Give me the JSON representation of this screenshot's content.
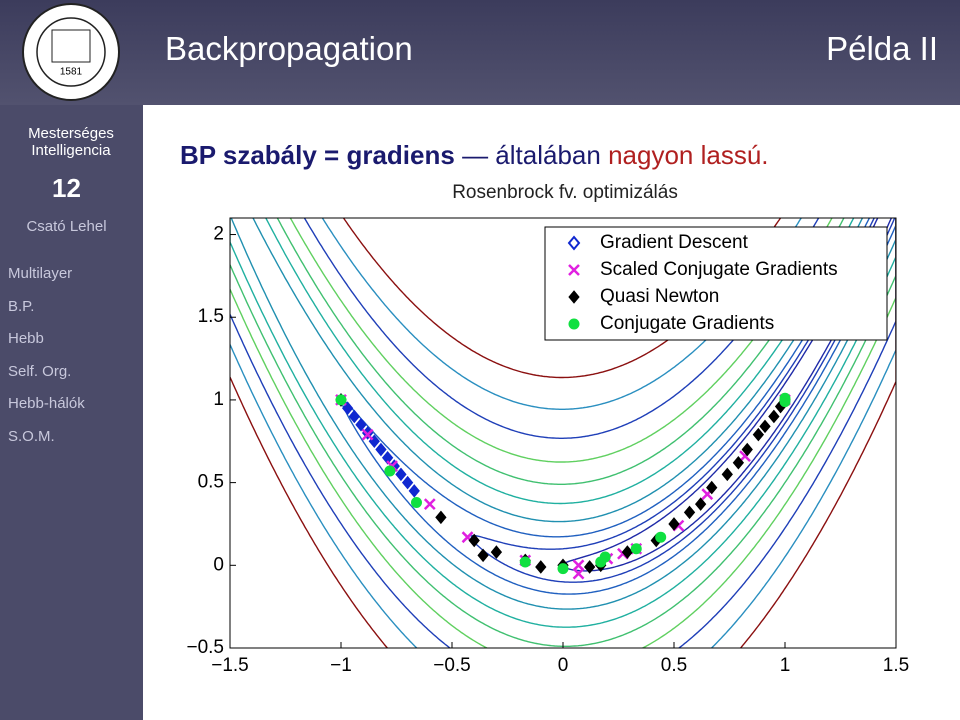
{
  "header": {
    "title": "Backpropagation",
    "right": "Példa II",
    "logo_year": "1581"
  },
  "sidebar": {
    "course": "Mesterséges Intelligencia",
    "number": "12",
    "author": "Csató Lehel",
    "items": [
      "Multilayer",
      "B.P.",
      "Hebb",
      "Self. Org.",
      "Hebb-hálók",
      "S.O.M."
    ]
  },
  "headline": {
    "bold": "BP szabály = gradiens",
    "dash": "—",
    "normal": "általában",
    "red": "nagyon lassú."
  },
  "chart_data": {
    "type": "scatter",
    "title": "Rosenbrock fv. optimizálás",
    "xlim": [
      -1.5,
      1.5
    ],
    "ylim": [
      -0.5,
      2.1
    ],
    "xticks": [
      {
        "value": -1.5,
        "label": "−1.5"
      },
      {
        "value": -1,
        "label": "−1"
      },
      {
        "value": -0.5,
        "label": "−0.5"
      },
      0,
      0.5,
      1,
      1.5
    ],
    "yticks": [
      {
        "value": -0.5,
        "label": "−0.5"
      },
      0,
      0.5,
      1,
      1.5,
      2
    ],
    "contours": {
      "levels": [
        1,
        2,
        4,
        8,
        15,
        25,
        40,
        60,
        90,
        130
      ],
      "colors": [
        "#1f2aa8",
        "#1f3fb8",
        "#2060c0",
        "#2090b0",
        "#20b0a0",
        "#40c070",
        "#60d060",
        "#1f3fb8",
        "#2a8fc0",
        "#8b1010"
      ]
    },
    "legend": "upper right",
    "series": [
      {
        "name": "Gradient Descent",
        "color": "#1028d0",
        "marker": "diamond-open",
        "x": [
          -1,
          -0.97,
          -0.94,
          -0.91,
          -0.88,
          -0.85,
          -0.82,
          -0.79,
          -0.76,
          -0.73,
          -0.7,
          -0.67
        ],
        "values": [
          1,
          0.95,
          0.9,
          0.85,
          0.8,
          0.75,
          0.7,
          0.65,
          0.6,
          0.55,
          0.5,
          0.45
        ]
      },
      {
        "name": "Scaled Conjugate Gradients",
        "color": "#e020e0",
        "marker": "x",
        "x": [
          -1,
          -0.88,
          -0.77,
          -0.6,
          -0.43,
          -0.17,
          0.07,
          0.07,
          0.2,
          0.27,
          0.33,
          0.52,
          0.65,
          0.82,
          1
        ],
        "values": [
          1,
          0.79,
          0.6,
          0.37,
          0.17,
          0.03,
          0,
          -0.05,
          0.04,
          0.07,
          0.1,
          0.24,
          0.43,
          0.66,
          1
        ]
      },
      {
        "name": "Quasi Newton",
        "color": "#000000",
        "marker": "diamond",
        "x": [
          -1,
          -0.55,
          -0.4,
          -0.36,
          -0.3,
          -0.17,
          -0.1,
          0,
          0.12,
          0.17,
          0.29,
          0.42,
          0.5,
          0.57,
          0.62,
          0.67,
          0.74,
          0.79,
          0.83,
          0.88,
          0.91,
          0.95,
          0.98,
          1
        ],
        "values": [
          1,
          0.29,
          0.15,
          0.06,
          0.08,
          0.03,
          -0.01,
          0,
          -0.01,
          0,
          0.08,
          0.15,
          0.25,
          0.32,
          0.37,
          0.47,
          0.55,
          0.62,
          0.7,
          0.79,
          0.84,
          0.9,
          0.96,
          1
        ]
      },
      {
        "name": "Conjugate Gradients",
        "color": "#10e040",
        "marker": "circle",
        "x": [
          -1,
          -0.78,
          -0.66,
          -0.17,
          0,
          0.17,
          0.19,
          0.33,
          0.44,
          1,
          1
        ],
        "values": [
          1,
          0.57,
          0.38,
          0.02,
          -0.02,
          0.02,
          0.05,
          0.1,
          0.17,
          0.99,
          1.01
        ]
      }
    ]
  }
}
